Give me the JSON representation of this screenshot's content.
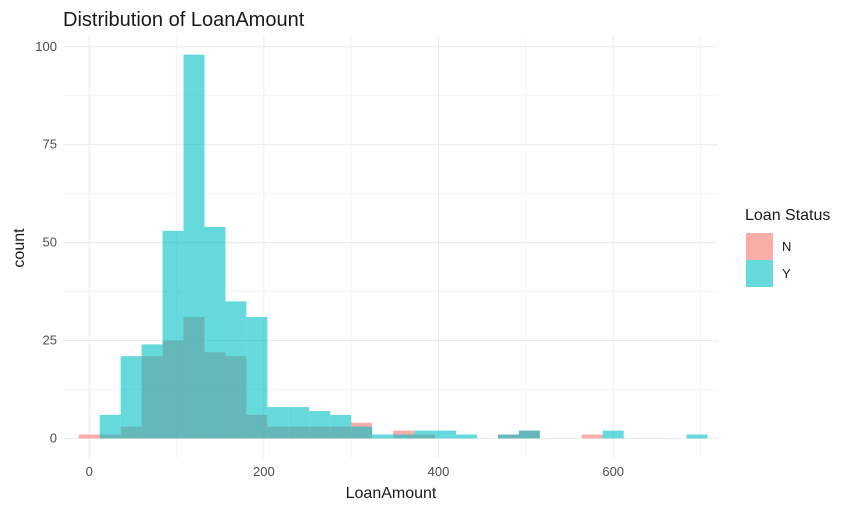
{
  "chart_data": {
    "type": "bar",
    "subtype": "overlapping-histogram",
    "title": "Distribution of LoanAmount",
    "xlabel": "LoanAmount",
    "ylabel": "count",
    "xlim": [
      -30,
      720
    ],
    "ylim": [
      -5,
      103
    ],
    "x_ticks": [
      0,
      200,
      400,
      600
    ],
    "y_ticks": [
      0,
      25,
      50,
      75,
      100
    ],
    "grid": true,
    "bin_width": 24,
    "legend": {
      "title": "Loan Status",
      "position": "right",
      "entries": [
        "N",
        "Y"
      ]
    },
    "series": [
      {
        "name": "N",
        "color": "#F8766D",
        "opacity": 0.6,
        "bins": [
          {
            "x": 0,
            "count": 1
          },
          {
            "x": 24,
            "count": 1
          },
          {
            "x": 48,
            "count": 3
          },
          {
            "x": 72,
            "count": 21
          },
          {
            "x": 96,
            "count": 25
          },
          {
            "x": 120,
            "count": 31
          },
          {
            "x": 144,
            "count": 22
          },
          {
            "x": 168,
            "count": 21
          },
          {
            "x": 192,
            "count": 6
          },
          {
            "x": 216,
            "count": 3
          },
          {
            "x": 240,
            "count": 3
          },
          {
            "x": 264,
            "count": 3
          },
          {
            "x": 288,
            "count": 3
          },
          {
            "x": 312,
            "count": 4
          },
          {
            "x": 360,
            "count": 2
          },
          {
            "x": 384,
            "count": 1
          },
          {
            "x": 480,
            "count": 1
          },
          {
            "x": 504,
            "count": 2
          },
          {
            "x": 576,
            "count": 1
          }
        ]
      },
      {
        "name": "Y",
        "color": "#00BFC4",
        "opacity": 0.6,
        "bins": [
          {
            "x": 24,
            "count": 6
          },
          {
            "x": 48,
            "count": 21
          },
          {
            "x": 72,
            "count": 24
          },
          {
            "x": 96,
            "count": 53
          },
          {
            "x": 120,
            "count": 98
          },
          {
            "x": 144,
            "count": 54
          },
          {
            "x": 168,
            "count": 35
          },
          {
            "x": 192,
            "count": 31
          },
          {
            "x": 216,
            "count": 8
          },
          {
            "x": 240,
            "count": 8
          },
          {
            "x": 264,
            "count": 7
          },
          {
            "x": 288,
            "count": 6
          },
          {
            "x": 312,
            "count": 3
          },
          {
            "x": 336,
            "count": 1
          },
          {
            "x": 360,
            "count": 1
          },
          {
            "x": 384,
            "count": 2
          },
          {
            "x": 408,
            "count": 2
          },
          {
            "x": 432,
            "count": 1
          },
          {
            "x": 480,
            "count": 1
          },
          {
            "x": 504,
            "count": 2
          },
          {
            "x": 600,
            "count": 2
          },
          {
            "x": 696,
            "count": 1
          }
        ]
      }
    ]
  }
}
